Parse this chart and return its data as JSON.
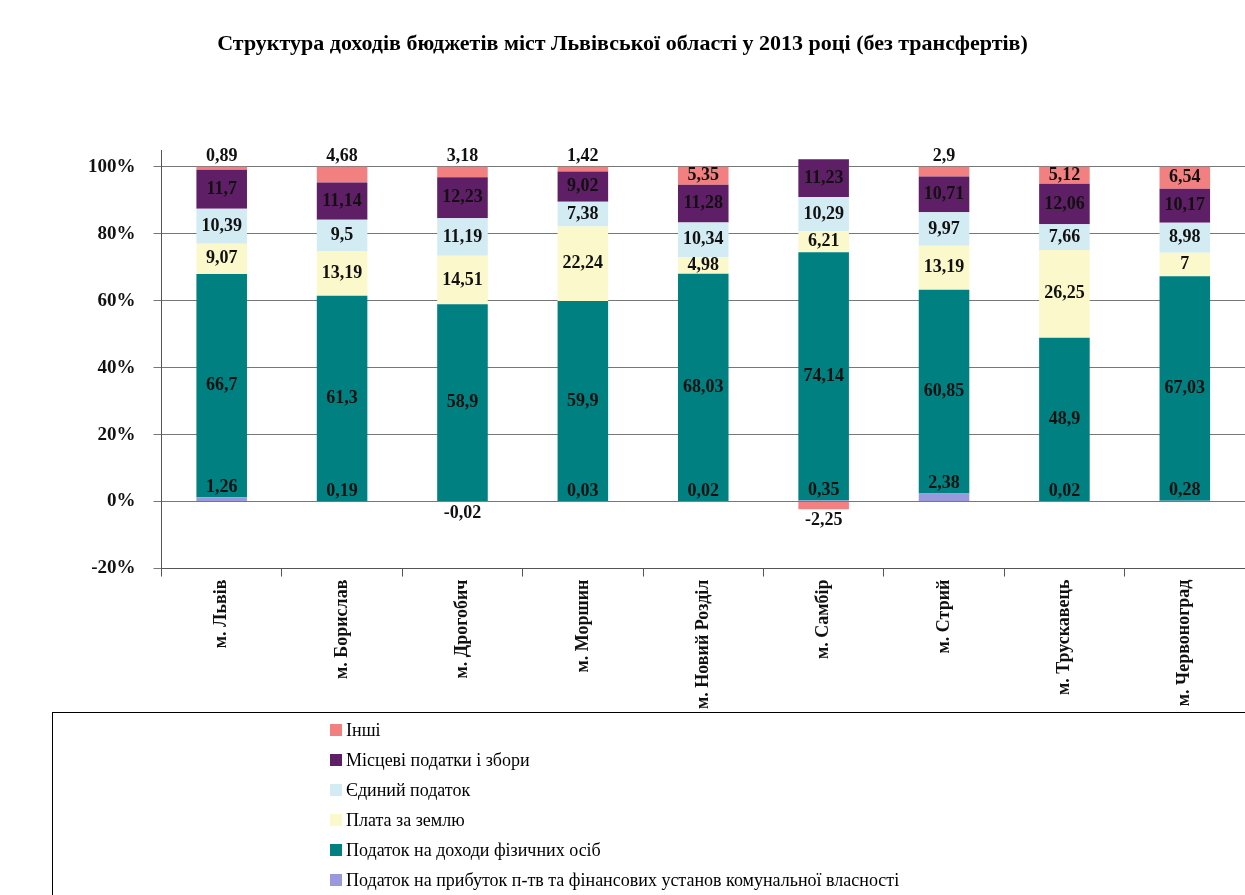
{
  "chart_data": {
    "type": "bar",
    "stacked": true,
    "title": "Структура доходів бюджетів міст Львівської області у 2013 році (без трансфертів)",
    "categories": [
      "м. Львів",
      "м. Борислав",
      "м. Дрогобич",
      "м. Моршин",
      "м. Новий Розділ",
      "м. Самбір",
      "м. Стрий",
      "м. Трускавець",
      "м. Червоноград"
    ],
    "series": [
      {
        "name": "Податок на прибуток п-тв та фінансових установ комунальної власності",
        "color": "#9999dd",
        "values": [
          1.26,
          0.19,
          -0.02,
          0.03,
          0.02,
          0.35,
          2.38,
          0.02,
          0.28
        ],
        "value_labels": [
          "1,26",
          "0,19",
          "-0,02",
          "0,03",
          "0,02",
          "0,35",
          "2,38",
          "0,02",
          "0,28"
        ]
      },
      {
        "name": "Податок на доходи фізичних осіб",
        "color": "#008080",
        "values": [
          66.7,
          61.3,
          58.9,
          59.9,
          68.03,
          74.14,
          60.85,
          48.9,
          67.03
        ],
        "value_labels": [
          "66,7",
          "61,3",
          "58,9",
          "59,9",
          "68,03",
          "74,14",
          "60,85",
          "48,9",
          "67,03"
        ]
      },
      {
        "name": "Плата за землю",
        "color": "#fbf8cc",
        "values": [
          9.07,
          13.19,
          14.51,
          22.24,
          4.98,
          6.21,
          13.19,
          26.25,
          7
        ],
        "value_labels": [
          "9,07",
          "13,19",
          "14,51",
          "22,24",
          "4,98",
          "6,21",
          "13,19",
          "26,25",
          "7"
        ]
      },
      {
        "name": "Єдиний податок",
        "color": "#d3ecf4",
        "values": [
          10.39,
          9.5,
          11.19,
          7.38,
          10.34,
          10.29,
          9.97,
          7.66,
          8.98
        ],
        "value_labels": [
          "10,39",
          "9,5",
          "11,19",
          "7,38",
          "10,34",
          "10,29",
          "9,97",
          "7,66",
          "8,98"
        ]
      },
      {
        "name": "Місцеві податки і збори",
        "color": "#5f1f66",
        "values": [
          11.7,
          11.14,
          12.23,
          9.02,
          11.28,
          11.23,
          10.71,
          12.06,
          10.17
        ],
        "value_labels": [
          "11,7",
          "11,14",
          "12,23",
          "9,02",
          "11,28",
          "11,23",
          "10,71",
          "12,06",
          "10,17"
        ]
      },
      {
        "name": "Інші",
        "color": "#f28080",
        "values": [
          0.89,
          4.68,
          3.18,
          1.42,
          5.35,
          -2.25,
          2.9,
          5.12,
          6.54
        ],
        "value_labels": [
          "0,89",
          "4,68",
          "3,18",
          "1,42",
          "5,35",
          "-2,25",
          "2,9",
          "5,12",
          "6,54"
        ]
      }
    ],
    "ylim": [
      -20,
      105
    ],
    "yticks": [
      {
        "value": -20,
        "label": "-20%"
      },
      {
        "value": 0,
        "label": "0%"
      },
      {
        "value": 20,
        "label": "20%"
      },
      {
        "value": 40,
        "label": "40%"
      },
      {
        "value": 60,
        "label": "60%"
      },
      {
        "value": 80,
        "label": "80%"
      },
      {
        "value": 100,
        "label": "100%"
      }
    ],
    "grid": "y",
    "legend": "bottom"
  }
}
